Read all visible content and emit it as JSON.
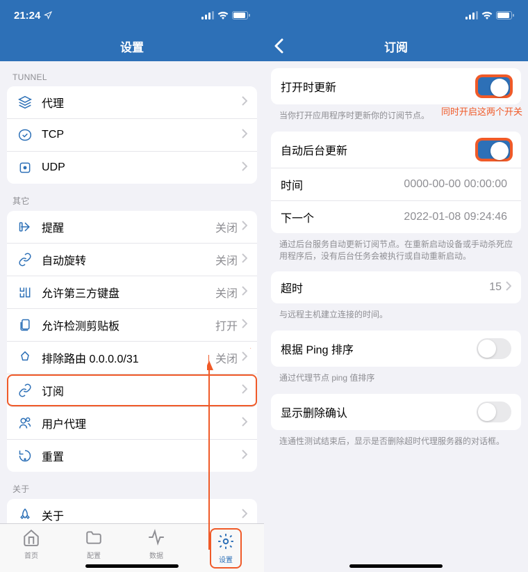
{
  "colors": {
    "primary": "#2d70b7",
    "background": "#f2f2f7",
    "card": "#ffffff",
    "text": "#000000",
    "textSecondary": "#8e8e93",
    "separator": "#e5e5ea",
    "annotation": "#f05a28",
    "toggleOff": "#e9e9eb"
  },
  "statusBar": {
    "time": "21:24",
    "signalIcon": "signal",
    "wifiIcon": "wifi",
    "batteryIcon": "battery"
  },
  "left": {
    "title": "设置",
    "sections": [
      {
        "header": "TUNNEL",
        "items": [
          {
            "icon": "layers",
            "label": "代理",
            "value": "",
            "chevron": true
          },
          {
            "icon": "handshake",
            "label": "TCP",
            "value": "",
            "chevron": true
          },
          {
            "icon": "udp",
            "label": "UDP",
            "value": "",
            "chevron": true
          }
        ]
      },
      {
        "header": "其它",
        "items": [
          {
            "icon": "bell",
            "label": "提醒",
            "value": "关闭",
            "chevron": true
          },
          {
            "icon": "rotate",
            "label": "自动旋转",
            "value": "关闭",
            "chevron": true
          },
          {
            "icon": "keyboard",
            "label": "允许第三方键盘",
            "value": "关闭",
            "chevron": true
          },
          {
            "icon": "clipboard",
            "label": "允许检测剪贴板",
            "value": "打开",
            "chevron": true
          },
          {
            "icon": "route",
            "label": "排除路由 0.0.0.0/31",
            "value": "关闭",
            "chevron": true
          },
          {
            "icon": "link",
            "label": "订阅",
            "value": "",
            "chevron": true,
            "highlight": true
          },
          {
            "icon": "user",
            "label": "用户代理",
            "value": "",
            "chevron": true
          },
          {
            "icon": "reset",
            "label": "重置",
            "value": "",
            "chevron": true
          }
        ]
      },
      {
        "header": "关于",
        "items": [
          {
            "icon": "rocket",
            "label": "关于",
            "value": "",
            "chevron": true
          }
        ]
      }
    ],
    "tabs": [
      {
        "icon": "home",
        "label": "首页",
        "active": false
      },
      {
        "icon": "folder",
        "label": "配置",
        "active": false
      },
      {
        "icon": "activity",
        "label": "数据",
        "active": false
      },
      {
        "icon": "gear",
        "label": "设置",
        "active": true,
        "highlight": true
      }
    ]
  },
  "right": {
    "title": "订阅",
    "groups": [
      {
        "items": [
          {
            "label": "打开时更新",
            "type": "toggle",
            "on": true,
            "highlight": true
          }
        ],
        "hint": "当你打开应用程序时更新你的订阅节点。"
      },
      {
        "items": [
          {
            "label": "自动后台更新",
            "type": "toggle",
            "on": true,
            "highlight": true
          },
          {
            "label": "时间",
            "type": "value",
            "value": "0000-00-00 00:00:00"
          },
          {
            "label": "下一个",
            "type": "value",
            "value": "2022-01-08 09:24:46"
          }
        ],
        "hint": "通过后台服务自动更新订阅节点。在重新启动设备或手动杀死应用程序后，没有后台任务会被执行或自动重新启动。"
      },
      {
        "items": [
          {
            "label": "超时",
            "type": "value",
            "value": "15",
            "chevron": true
          }
        ],
        "hint": "与远程主机建立连接的时间。"
      },
      {
        "items": [
          {
            "label": "根据 Ping 排序",
            "type": "toggle",
            "on": false
          }
        ],
        "hint": "通过代理节点 ping 值排序"
      },
      {
        "items": [
          {
            "label": "显示删除确认",
            "type": "toggle",
            "on": false
          }
        ],
        "hint": "连通性测试结束后，显示是否删除超时代理服务器的对话框。"
      }
    ]
  },
  "annotation": {
    "text": "同时开启这两个开关"
  }
}
